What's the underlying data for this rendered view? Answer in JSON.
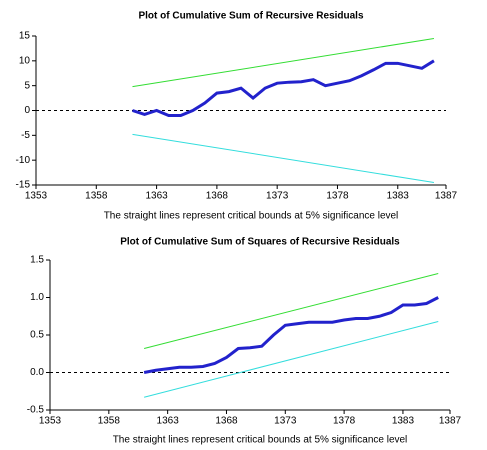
{
  "chart_data": [
    {
      "type": "line",
      "title": "Plot of Cumulative Sum of Recursive Residuals",
      "caption": "The straight lines represent critical bounds at 5% significance level",
      "xlim": [
        1353,
        1387
      ],
      "xticks": [
        1353,
        1358,
        1363,
        1368,
        1373,
        1378,
        1383,
        1387
      ],
      "ylim": [
        -15,
        15
      ],
      "yticks": [
        -15,
        -10,
        -5,
        0,
        5,
        10,
        15
      ],
      "zero_line": true,
      "series": [
        {
          "color": "#2222cc",
          "x": [
            1361,
            1362,
            1363,
            1364,
            1365,
            1366,
            1367,
            1368,
            1369,
            1370,
            1371,
            1372,
            1373,
            1374,
            1375,
            1376,
            1377,
            1378,
            1379,
            1380,
            1381,
            1382,
            1383,
            1384,
            1385,
            1386
          ],
          "values": [
            0,
            -0.8,
            0,
            -1,
            -1,
            0,
            1.5,
            3.5,
            3.8,
            4.5,
            2.5,
            4.5,
            5.5,
            5.7,
            5.8,
            6.2,
            5,
            5.5,
            6,
            7,
            8.2,
            9.5,
            9.5,
            9,
            8.5,
            10
          ]
        },
        {
          "color": "#33dd33",
          "x": [
            1361,
            1386
          ],
          "values": [
            4.8,
            14.5
          ]
        },
        {
          "color": "#33dddd",
          "x": [
            1361,
            1386
          ],
          "values": [
            -4.8,
            -14.5
          ]
        }
      ]
    },
    {
      "type": "line",
      "title": "Plot of Cumulative Sum of Squares of Recursive Residuals",
      "caption": "The straight lines represent critical bounds at 5% significance level",
      "xlim": [
        1353,
        1387
      ],
      "xticks": [
        1353,
        1358,
        1363,
        1368,
        1373,
        1378,
        1383,
        1387
      ],
      "ylim": [
        -0.5,
        1.5
      ],
      "yticks": [
        -0.5,
        {
          "value": 0,
          "label": "0.0"
        },
        0.5,
        {
          "value": 1,
          "label": "1.0"
        },
        1.5
      ],
      "zero_line": true,
      "series": [
        {
          "color": "#2222cc",
          "x": [
            1361,
            1362,
            1363,
            1364,
            1365,
            1366,
            1367,
            1368,
            1369,
            1370,
            1371,
            1372,
            1373,
            1374,
            1375,
            1376,
            1377,
            1378,
            1379,
            1380,
            1381,
            1382,
            1383,
            1384,
            1385,
            1386
          ],
          "values": [
            0,
            0.03,
            0.05,
            0.07,
            0.07,
            0.08,
            0.12,
            0.2,
            0.32,
            0.33,
            0.35,
            0.5,
            0.63,
            0.65,
            0.67,
            0.67,
            0.67,
            0.7,
            0.72,
            0.72,
            0.75,
            0.8,
            0.9,
            0.9,
            0.92,
            1.0
          ]
        },
        {
          "color": "#33dd33",
          "x": [
            1361,
            1386
          ],
          "values": [
            0.32,
            1.32
          ]
        },
        {
          "color": "#33dddd",
          "x": [
            1361,
            1386
          ],
          "values": [
            -0.33,
            0.68
          ]
        }
      ]
    }
  ]
}
